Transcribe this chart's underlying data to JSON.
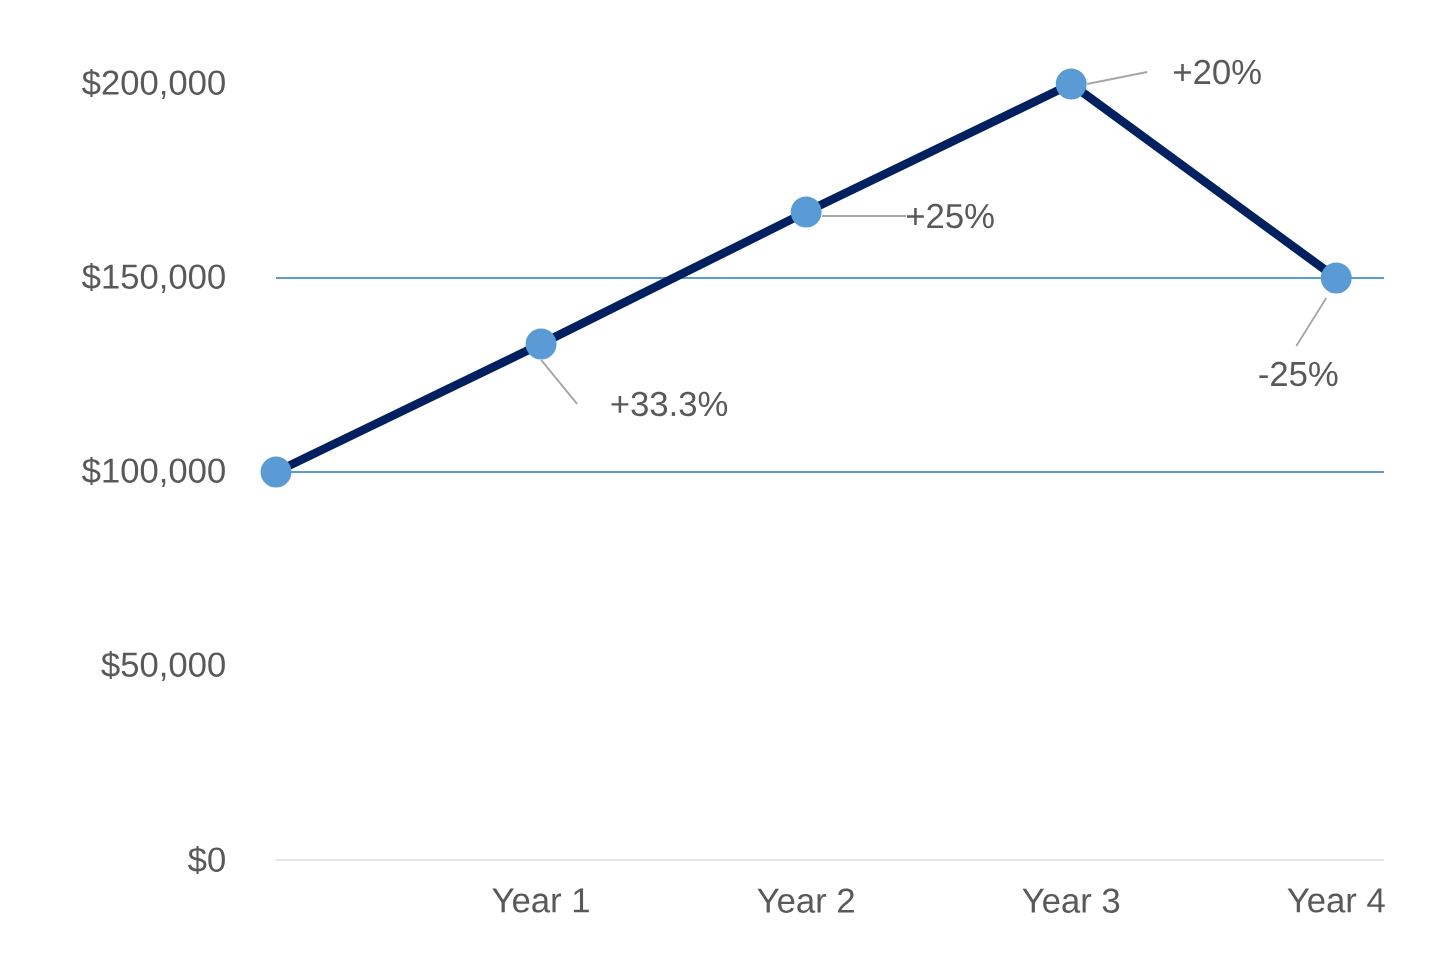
{
  "chart_data": {
    "type": "line",
    "categories": [
      null,
      "Year 1",
      "Year 2",
      "Year 3",
      "Year 4"
    ],
    "series": [
      {
        "color": "#002060",
        "values": [
          100000,
          133000,
          167000,
          200000,
          150000
        ]
      }
    ],
    "marker": "circle",
    "line_style": "solid",
    "grid": false,
    "ylim": [
      0,
      200000
    ],
    "yticks": [
      {
        "value": 0,
        "label": "$0"
      },
      {
        "value": 50000,
        "label": "$50,000"
      },
      {
        "value": 100000,
        "label": "$100,000"
      },
      {
        "value": 150000,
        "label": "$150,000"
      },
      {
        "value": 200000,
        "label": "$200,000"
      }
    ],
    "ref_lines": [
      {
        "axis": "y",
        "value": 100000,
        "color": "#5b9bd5"
      },
      {
        "axis": "y",
        "value": 150000,
        "color": "#5b9bd5"
      }
    ],
    "annotations": [
      {
        "text": "+33.3%",
        "x": "Year 1",
        "y": 133000
      },
      {
        "text": "+25%",
        "x": "Year 2",
        "y": 167000
      },
      {
        "text": "+20%",
        "x": "Year 3",
        "y": 200000
      },
      {
        "text": "-25%",
        "x": "Year 4",
        "y": 150000
      }
    ]
  }
}
